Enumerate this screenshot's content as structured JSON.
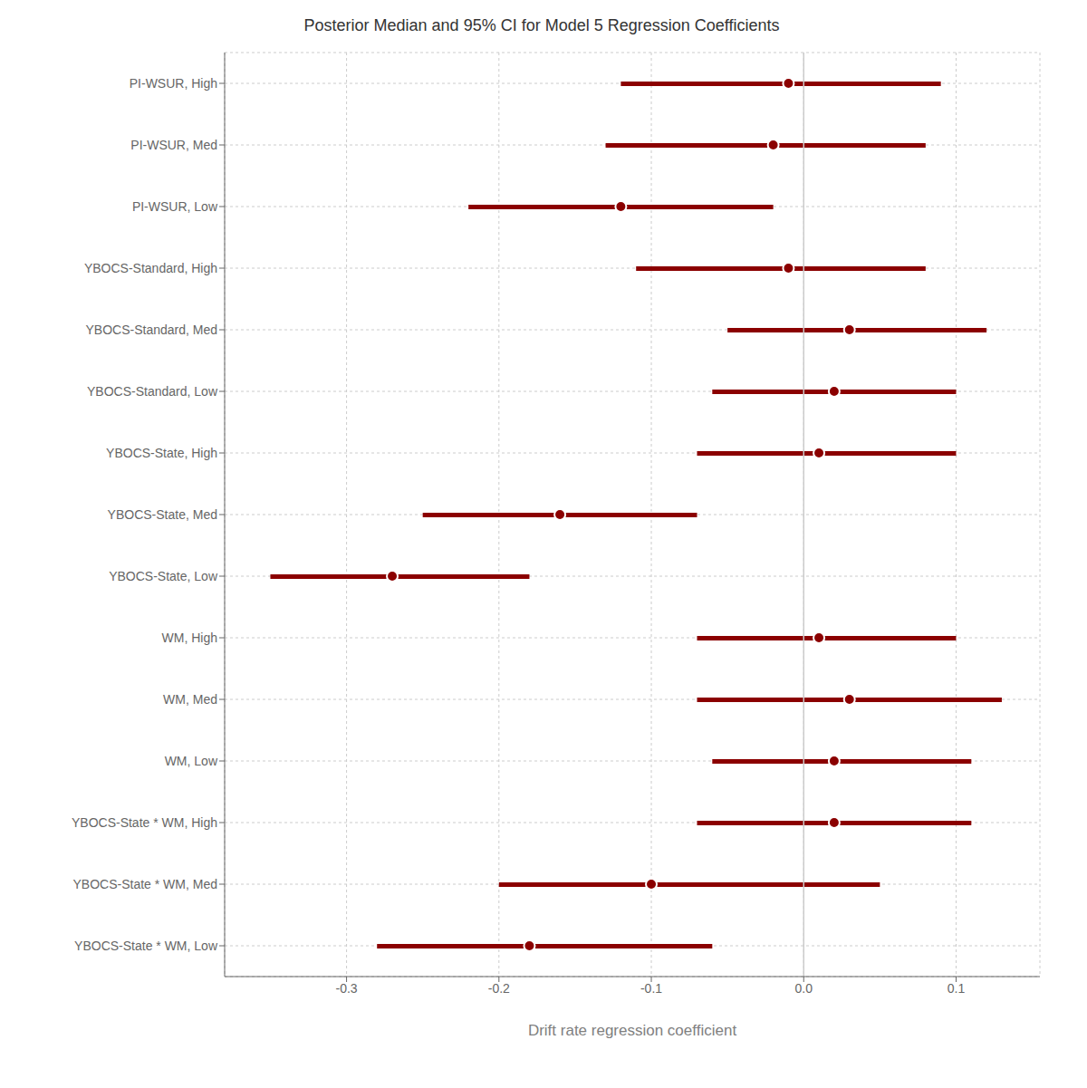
{
  "chart_data": {
    "type": "forest",
    "title": "Posterior Median and 95% CI for Model 5 Regression Coefficients",
    "x_label": "Drift rate regression coefficient",
    "categories": [
      "PI-WSUR, High",
      "PI-WSUR, Med",
      "PI-WSUR, Low",
      "YBOCS-Standard, High",
      "YBOCS-Standard, Med",
      "YBOCS-Standard, Low",
      "YBOCS-State, High",
      "YBOCS-State, Med",
      "YBOCS-State, Low",
      "WM, High",
      "WM, Med",
      "WM, Low",
      "YBOCS-State * WM, High",
      "YBOCS-State * WM, Med",
      "YBOCS-State * WM, Low"
    ],
    "values": [
      -0.01,
      -0.02,
      -0.12,
      -0.01,
      0.03,
      0.02,
      0.01,
      -0.16,
      -0.27,
      0.01,
      0.03,
      0.02,
      0.02,
      -0.1,
      -0.18
    ],
    "ci_low": [
      -0.12,
      -0.13,
      -0.22,
      -0.11,
      -0.05,
      -0.06,
      -0.07,
      -0.25,
      -0.35,
      -0.07,
      -0.07,
      -0.06,
      -0.07,
      -0.2,
      -0.28
    ],
    "ci_high": [
      0.09,
      0.08,
      -0.02,
      0.08,
      0.12,
      0.1,
      0.1,
      -0.07,
      -0.18,
      0.1,
      0.13,
      0.11,
      0.11,
      0.05,
      -0.06
    ],
    "color": "#8B0000",
    "vline": 0,
    "xlim": [
      -0.38,
      0.155
    ],
    "xticks": [
      -0.3,
      -0.2,
      -0.1,
      {
        "value": 0,
        "label": "0.0"
      },
      0.1
    ],
    "grid": true
  }
}
